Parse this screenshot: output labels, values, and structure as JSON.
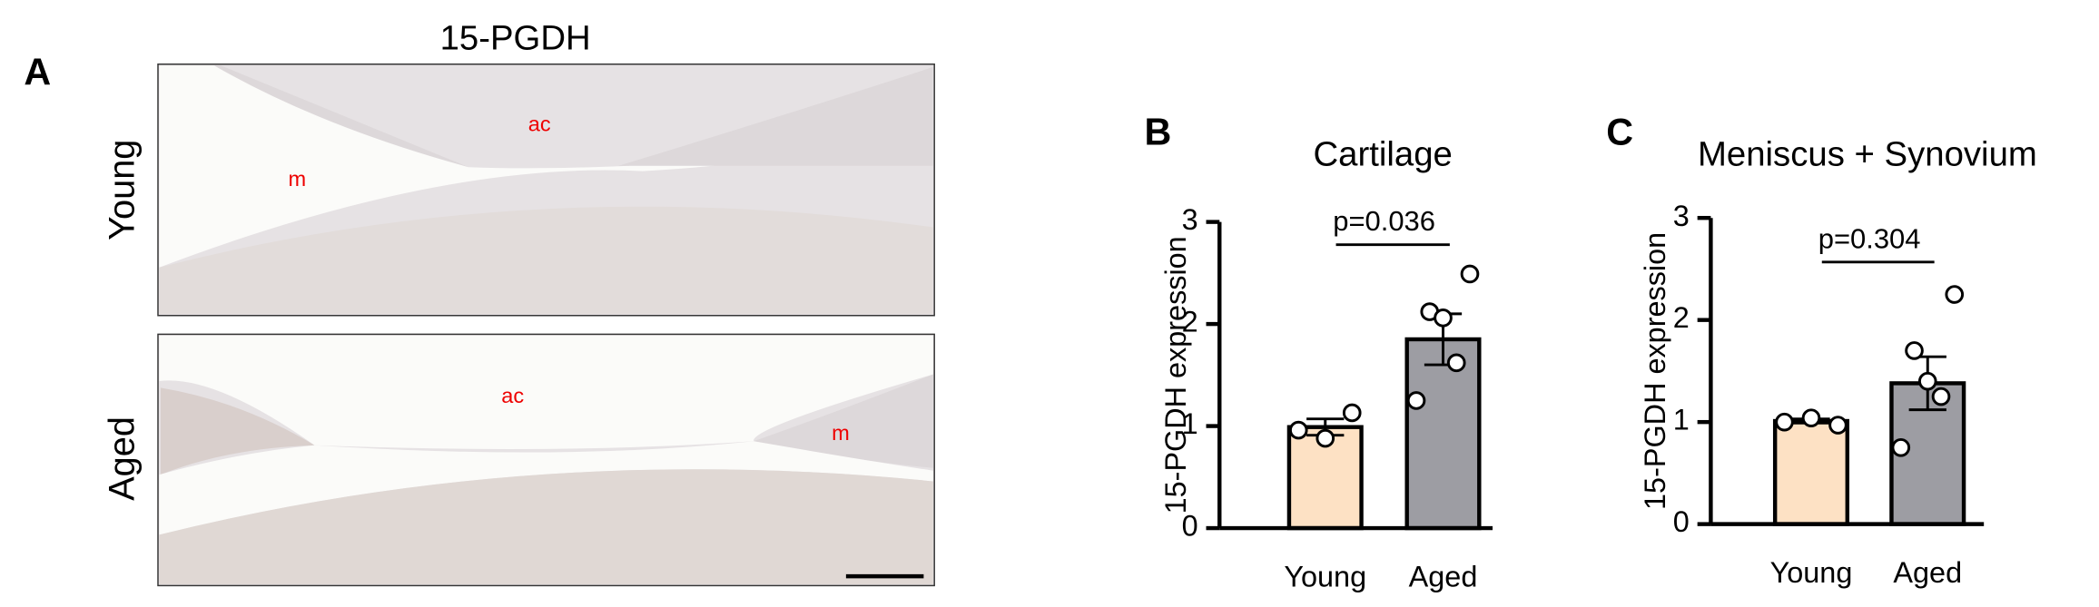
{
  "panel_a": {
    "label": "A",
    "title": "15-PGDH",
    "rows": [
      "Young",
      "Aged"
    ],
    "young_labels": [
      "ac",
      "m"
    ],
    "aged_labels": [
      "ac",
      "m"
    ]
  },
  "chart_data": [
    {
      "type": "bar",
      "panel": "B",
      "title": "Cartilage",
      "y_label": "15-PGDH expression",
      "categories": [
        "Young",
        "Aged"
      ],
      "values": [
        0.99,
        1.85
      ],
      "errors": [
        0.08,
        0.25
      ],
      "colors": [
        "#fde1c4",
        "#9d9da3"
      ],
      "points": [
        [
          1.13,
          0.88,
          0.96
        ],
        [
          2.49,
          2.12,
          2.06,
          1.62,
          1.25
        ]
      ],
      "annotation": "p=0.036",
      "ylim": [
        0,
        3
      ],
      "yticks": [
        0,
        1,
        2,
        3
      ]
    },
    {
      "type": "bar",
      "panel": "C",
      "title": "Meniscus + Synovium",
      "y_label": "15-PGDH expression",
      "categories": [
        "Young",
        "Aged"
      ],
      "values": [
        1.01,
        1.38
      ],
      "errors": [
        0.02,
        0.26
      ],
      "colors": [
        "#fde1c4",
        "#9d9da3"
      ],
      "points": [
        [
          0.97,
          1.04,
          1.0
        ],
        [
          2.25,
          1.7,
          1.4,
          1.25,
          0.75
        ]
      ],
      "annotation": "p=0.304",
      "ylim": [
        0,
        3
      ],
      "yticks": [
        0,
        1,
        2,
        3
      ]
    }
  ]
}
